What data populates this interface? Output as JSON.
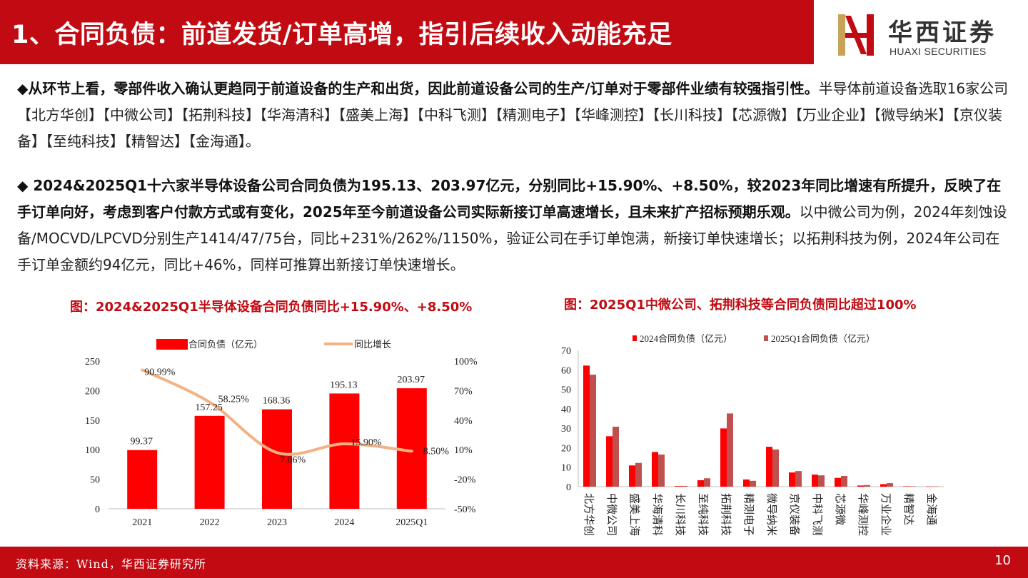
{
  "header": {
    "title": "1、合同负债：前道发货/订单高增，指引后续收入动能充足",
    "logo_cn": "华西证券",
    "logo_en": "HUAXI SECURITIES"
  },
  "paragraphs": {
    "p1_bold": "◆从环节上看，零部件收入确认更趋同于前道设备的生产和出货，因此前道设备公司的生产/订单对于零部件业绩有较强指引性。",
    "p1_normal": "半导体前道设备选取16家公司【北方华创】【中微公司】【拓荆科技】【华海清科】【盛美上海】【中科飞测】【精测电子】【华峰测控】【长川科技】【芯源微】【万业企业】【微导纳米】【京仪装备】【至纯科技】【精智达】【金海通】。",
    "p2_bold": "◆ 2024&2025Q1十六家半导体设备公司合同负债为195.13、203.97亿元，分别同比+15.90%、+8.50%，较2023年同比增速有所提升，反映了在手订单向好，考虑到客户付款方式或有变化，2025年至今前道设备公司实际新接订单高速增长，且未来扩产招标预期乐观。",
    "p2_normal": "以中微公司为例，2024年刻蚀设备/MOCVD/LPCVD分别生产1414/47/75台，同比+231%/262%/1150%，验证公司在手订单饱满，新接订单快速增长；以拓荆科技为例，2024年公司在手订单金额约94亿元，同比+46%，同样可推算出新接订单快速增长。"
  },
  "chart_data": [
    {
      "type": "bar",
      "title": "图：2024&2025Q1半导体设备合同负债同比+15.90%、+8.50%",
      "categories": [
        "2021",
        "2022",
        "2023",
        "2024",
        "2025Q1"
      ],
      "series": [
        {
          "name": "合同负债（亿元）",
          "type": "bar",
          "axis": "left",
          "values": [
            99.37,
            157.25,
            168.36,
            195.13,
            203.97
          ],
          "labels": [
            "99.37",
            "157.25",
            "168.36",
            "195.13",
            "203.97"
          ],
          "color": "#ff0000"
        },
        {
          "name": "同比增长",
          "type": "line",
          "axis": "right",
          "values": [
            90.99,
            58.25,
            7.06,
            15.9,
            8.5
          ],
          "labels": [
            "90.99%",
            "58.25%",
            "7.06%",
            "15.90%",
            "8.50%"
          ],
          "color": "#f4b183"
        }
      ],
      "ylim": [
        0,
        250
      ],
      "yticks": [
        "0",
        "50",
        "100",
        "150",
        "200",
        "250"
      ],
      "y2lim": [
        -50,
        100
      ],
      "y2ticks": [
        "-50%",
        "-20%",
        "10%",
        "40%",
        "70%",
        "100%"
      ],
      "legend": "top",
      "grid": false
    },
    {
      "type": "bar",
      "title": "图：2025Q1中微公司、拓荆科技等合同负债同比超过100%",
      "categories": [
        "北方华创",
        "中微公司",
        "盛美上海",
        "华海清科",
        "长川科技",
        "至纯科技",
        "拓荆科技",
        "精测电子",
        "微导纳米",
        "京仪装备",
        "中科飞测",
        "芯源微",
        "华峰测控",
        "万业企业",
        "精智达",
        "金海通"
      ],
      "series": [
        {
          "name": "2024合同负债（亿元）",
          "values": [
            62.2,
            25.9,
            10.9,
            17.8,
            0.3,
            3.3,
            29.9,
            3.7,
            20.5,
            7.3,
            6.2,
            4.5,
            0.6,
            1.3,
            0.2,
            0.1
          ],
          "color": "#ff0000"
        },
        {
          "name": "2025Q1合同负债（亿元）",
          "values": [
            57.5,
            30.8,
            12.2,
            16.5,
            0.4,
            4.3,
            37.6,
            3.0,
            19.1,
            8.0,
            5.8,
            5.5,
            0.8,
            1.8,
            0.2,
            0.1
          ],
          "color": "#c0504d"
        }
      ],
      "ylim": [
        0,
        70
      ],
      "yticks": [
        "0",
        "10",
        "20",
        "30",
        "40",
        "50",
        "60",
        "70"
      ],
      "legend": "top",
      "grid": false
    }
  ],
  "footer": {
    "source": "资料来源：Wind，华西证券研究所",
    "page": "10"
  },
  "colors": {
    "brand_red": "#c10a12",
    "bar_red": "#ff0000",
    "bar_dark_red": "#c0504d",
    "line_peach": "#f4b183"
  }
}
